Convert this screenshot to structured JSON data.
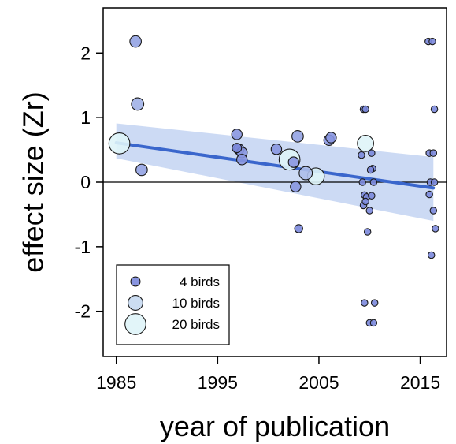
{
  "chart_data": {
    "type": "scatter",
    "xlabel": "year of publication",
    "ylabel": "effect size (Zr)",
    "xlim": [
      1983.7,
      2017.6
    ],
    "ylim": [
      -2.7,
      2.7
    ],
    "xticks": [
      1985,
      1995,
      2005,
      2015
    ],
    "xtick_labels": [
      "1985",
      "1995",
      "2005",
      "2015"
    ],
    "yticks": [
      -2,
      -1,
      0,
      1,
      2
    ],
    "ytick_labels": [
      "-2",
      "-1",
      "0",
      "1",
      "2"
    ],
    "grid": false,
    "zero_line": 0,
    "regression": {
      "x": [
        1985,
        2016.3
      ],
      "y": [
        0.61,
        -0.09
      ],
      "ci_lower": [
        0.37,
        -0.6
      ],
      "ci_upper": [
        0.91,
        0.39
      ]
    },
    "points": [
      {
        "x": 1985.3,
        "y": 0.6,
        "n": 20
      },
      {
        "x": 1986.9,
        "y": 2.18,
        "n": 6
      },
      {
        "x": 1987.1,
        "y": 1.21,
        "n": 7
      },
      {
        "x": 1987.5,
        "y": 0.19,
        "n": 6
      },
      {
        "x": 1996.9,
        "y": 0.74,
        "n": 5
      },
      {
        "x": 1996.9,
        "y": 0.53,
        "n": 4
      },
      {
        "x": 1997.1,
        "y": 0.51,
        "n": 5
      },
      {
        "x": 1997.4,
        "y": 0.46,
        "n": 5
      },
      {
        "x": 1997.4,
        "y": 0.35,
        "n": 5
      },
      {
        "x": 2000.8,
        "y": 0.51,
        "n": 5
      },
      {
        "x": 2002.1,
        "y": 0.35,
        "n": 20
      },
      {
        "x": 2002.5,
        "y": 0.31,
        "n": 5
      },
      {
        "x": 2002.7,
        "y": -0.07,
        "n": 5
      },
      {
        "x": 2002.9,
        "y": 0.71,
        "n": 6
      },
      {
        "x": 2003.0,
        "y": -0.72,
        "n": 3
      },
      {
        "x": 2003.7,
        "y": 0.14,
        "n": 8
      },
      {
        "x": 2004.7,
        "y": 0.09,
        "n": 13
      },
      {
        "x": 2006.0,
        "y": 0.65,
        "n": 5
      },
      {
        "x": 2006.2,
        "y": 0.69,
        "n": 5
      },
      {
        "x": 2009.6,
        "y": 0.6,
        "n": 12
      },
      {
        "x": 2009.4,
        "y": 1.13,
        "n": 2
      },
      {
        "x": 2009.6,
        "y": 1.13,
        "n": 2
      },
      {
        "x": 2009.2,
        "y": 0.42,
        "n": 2
      },
      {
        "x": 2009.3,
        "y": 0.0,
        "n": 2
      },
      {
        "x": 2009.5,
        "y": -0.2,
        "n": 2
      },
      {
        "x": 2009.7,
        "y": -0.23,
        "n": 2
      },
      {
        "x": 2009.4,
        "y": -0.36,
        "n": 2
      },
      {
        "x": 2009.6,
        "y": -0.3,
        "n": 2
      },
      {
        "x": 2009.8,
        "y": -0.77,
        "n": 2
      },
      {
        "x": 2009.5,
        "y": -1.87,
        "n": 2
      },
      {
        "x": 2010.2,
        "y": 0.45,
        "n": 2
      },
      {
        "x": 2010.3,
        "y": 0.21,
        "n": 2
      },
      {
        "x": 2010.1,
        "y": 0.19,
        "n": 2
      },
      {
        "x": 2010.4,
        "y": 0.0,
        "n": 2
      },
      {
        "x": 2010.2,
        "y": -0.21,
        "n": 2
      },
      {
        "x": 2010.0,
        "y": -0.44,
        "n": 2
      },
      {
        "x": 2010.5,
        "y": -1.87,
        "n": 2
      },
      {
        "x": 2010.0,
        "y": -2.18,
        "n": 2
      },
      {
        "x": 2010.4,
        "y": -2.18,
        "n": 2
      },
      {
        "x": 2015.8,
        "y": 2.18,
        "n": 2
      },
      {
        "x": 2016.2,
        "y": 2.18,
        "n": 2
      },
      {
        "x": 2016.4,
        "y": 1.13,
        "n": 2
      },
      {
        "x": 2015.9,
        "y": 0.45,
        "n": 2
      },
      {
        "x": 2016.3,
        "y": 0.45,
        "n": 2
      },
      {
        "x": 2016.0,
        "y": 0.0,
        "n": 2
      },
      {
        "x": 2016.4,
        "y": 0.0,
        "n": 2
      },
      {
        "x": 2015.9,
        "y": -0.19,
        "n": 2
      },
      {
        "x": 2016.3,
        "y": -0.44,
        "n": 2
      },
      {
        "x": 2016.5,
        "y": -0.72,
        "n": 2
      },
      {
        "x": 2016.1,
        "y": -1.13,
        "n": 2
      }
    ],
    "legend": {
      "position": "bottom-left",
      "entries": [
        {
          "label": "4 birds",
          "n": 4
        },
        {
          "label": "10 birds",
          "n": 10
        },
        {
          "label": "20 birds",
          "n": 20
        }
      ]
    },
    "colors": {
      "point_low": "#7b88dc",
      "point_high": "#dff4f8",
      "regression_line": "#3a66cc",
      "ci_band": "#c3d3f2",
      "point_stroke": "#1a1a1a"
    }
  }
}
